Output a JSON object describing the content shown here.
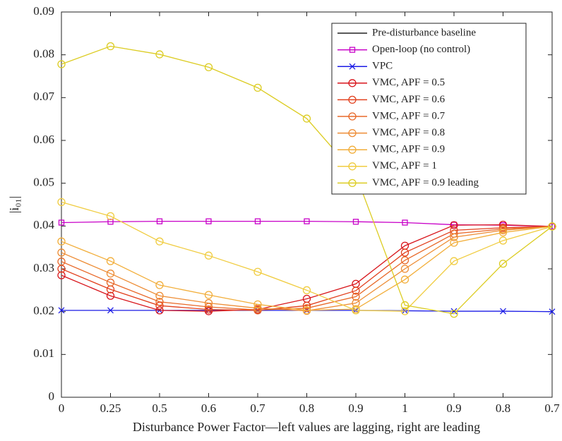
{
  "chart_data": {
    "type": "line",
    "xlabel": "Disturbance Power Factor—left values are lagging, right are leading",
    "ylabel": "|i₀₁|",
    "categories": [
      "0",
      "0.25",
      "0.5",
      "0.6",
      "0.7",
      "0.8",
      "0.9",
      "1",
      "0.9",
      "0.8",
      "0.7"
    ],
    "ylim": [
      0,
      0.09
    ],
    "yticks": [
      0,
      0.01,
      0.02,
      0.03,
      0.04,
      0.05,
      0.06,
      0.07,
      0.08,
      0.09
    ],
    "legend": "upper right",
    "series": [
      {
        "name": "Pre-disturbance baseline",
        "color": "#222222",
        "marker": "none",
        "values": [
          null,
          null,
          null,
          null,
          null,
          null,
          null,
          null,
          null,
          null,
          null
        ]
      },
      {
        "name": "Open-loop (no control)",
        "color": "#c800c8",
        "marker": "square",
        "values": [
          0.0408,
          0.041,
          0.0411,
          0.0411,
          0.0411,
          0.0411,
          0.041,
          0.0408,
          0.0403,
          0.0402,
          0.0399
        ]
      },
      {
        "name": "VPC",
        "color": "#1a1ae6",
        "marker": "x",
        "values": [
          0.0203,
          0.0203,
          0.0203,
          0.0203,
          0.0203,
          0.0203,
          0.0203,
          0.0202,
          0.0201,
          0.0201,
          0.02
        ]
      },
      {
        "name": "VMC, APF = 0.5",
        "color": "#d8161c",
        "marker": "circle",
        "values": [
          0.0285,
          0.0237,
          0.0203,
          0.0201,
          0.0205,
          0.023,
          0.0265,
          0.0354,
          0.0402,
          0.0403,
          0.0399
        ]
      },
      {
        "name": "VMC, APF = 0.6",
        "color": "#e2401e",
        "marker": "circle",
        "values": [
          0.03,
          0.0252,
          0.0214,
          0.0205,
          0.0203,
          0.0214,
          0.0249,
          0.0338,
          0.039,
          0.0396,
          0.0399
        ]
      },
      {
        "name": "VMC, APF = 0.7",
        "color": "#e86828",
        "marker": "circle",
        "values": [
          0.0317,
          0.0268,
          0.0223,
          0.0211,
          0.0204,
          0.0208,
          0.0235,
          0.032,
          0.0382,
          0.0393,
          0.0399
        ]
      },
      {
        "name": "VMC, APF = 0.8",
        "color": "#ed8c34",
        "marker": "circle",
        "values": [
          0.0338,
          0.0289,
          0.0237,
          0.022,
          0.0208,
          0.0202,
          0.022,
          0.03,
          0.0374,
          0.039,
          0.0399
        ]
      },
      {
        "name": "VMC, APF = 0.9",
        "color": "#f2ae3a",
        "marker": "circle",
        "values": [
          0.0364,
          0.0318,
          0.0262,
          0.0239,
          0.0217,
          0.0203,
          0.0206,
          0.0275,
          0.0361,
          0.0385,
          0.0399
        ]
      },
      {
        "name": "VMC, APF = 1",
        "color": "#f0cc40",
        "marker": "circle",
        "values": [
          0.0456,
          0.0423,
          0.0364,
          0.0331,
          0.0293,
          0.025,
          0.0203,
          0.0201,
          0.0318,
          0.0366,
          0.0399
        ]
      },
      {
        "name": "VMC, APF = 0.9 leading",
        "color": "#dccc22",
        "marker": "circle",
        "values": [
          0.0778,
          0.082,
          0.0801,
          0.0771,
          0.0723,
          0.0651,
          0.052,
          0.0215,
          0.0195,
          0.0312,
          0.0399
        ]
      }
    ]
  }
}
